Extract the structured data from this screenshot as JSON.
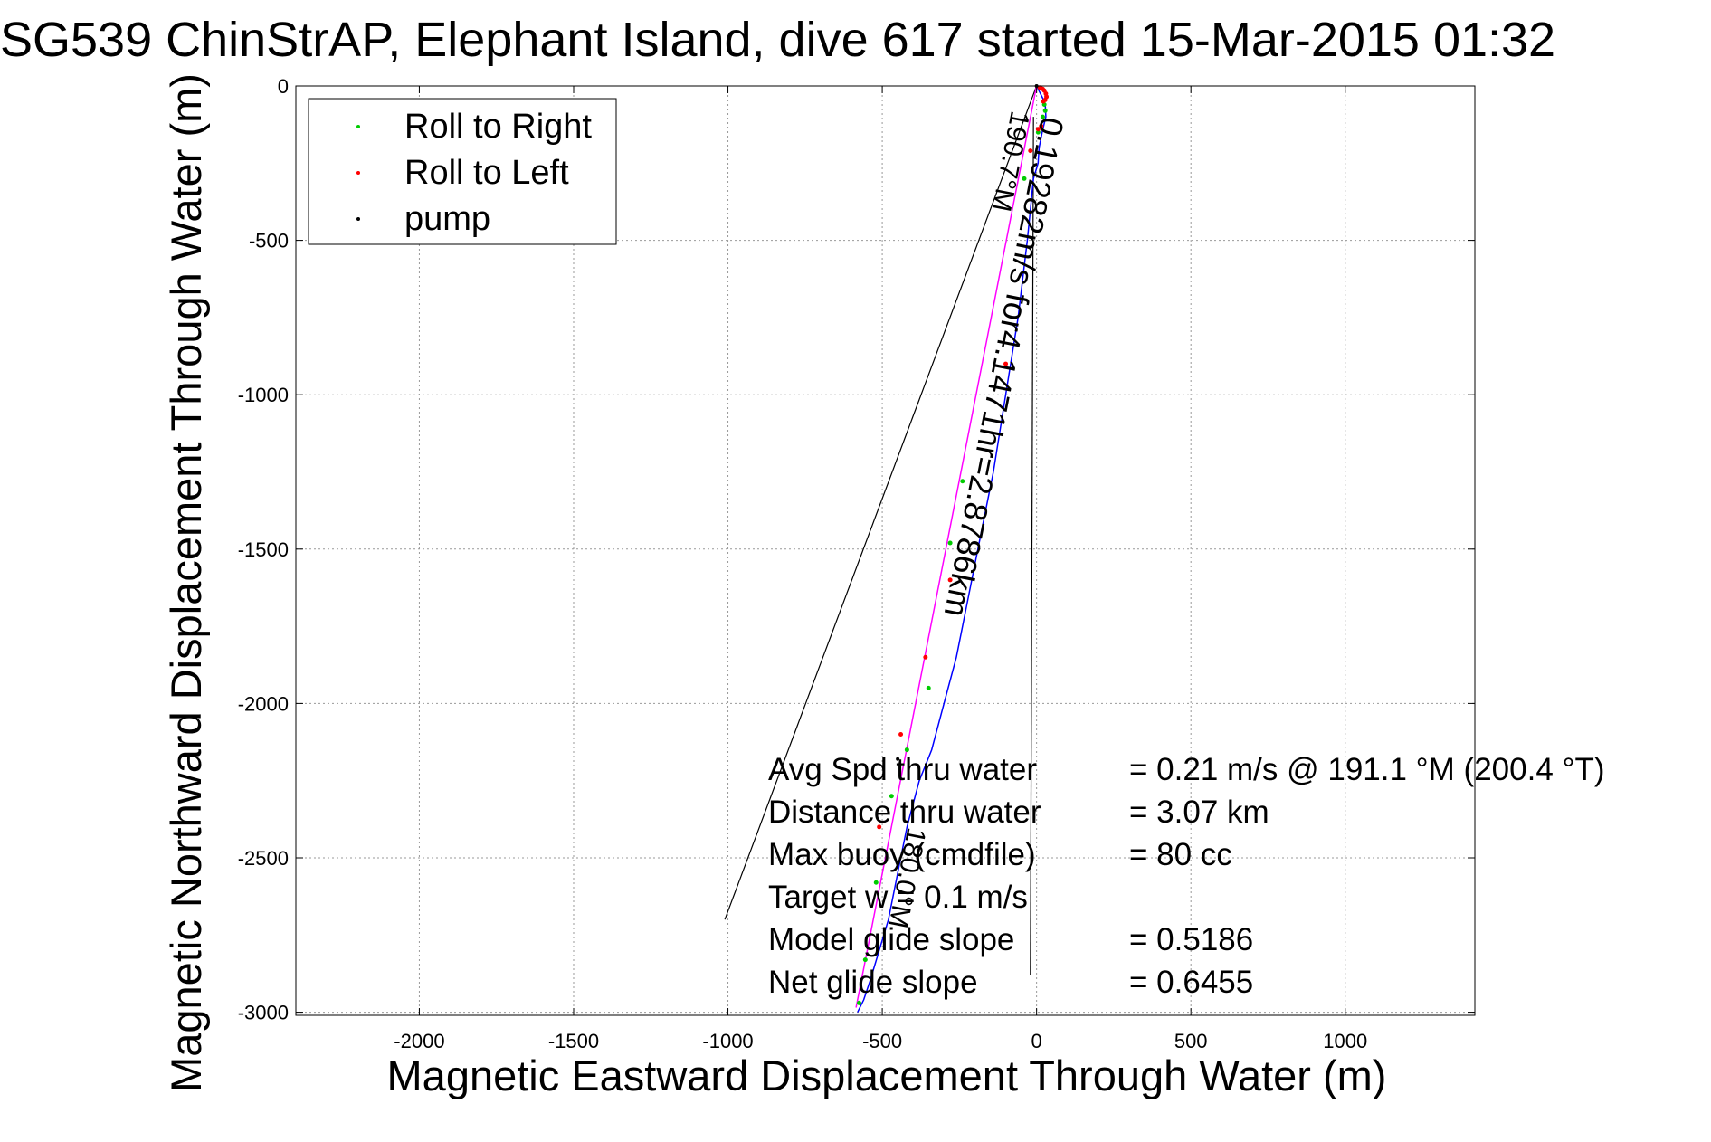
{
  "chart_data": {
    "type": "scatter",
    "title": "SG539 ChinStrAP, Elephant Island, dive 617 started 15-Mar-2015 01:32",
    "xlabel": "Magnetic Eastward Displacement Through Water (m)",
    "ylabel": "Magnetic Northward Displacement Through Water (m)",
    "xlim": [
      -2400,
      1420
    ],
    "ylim": [
      -3010,
      0
    ],
    "xticks": [
      -2000,
      -1500,
      -1000,
      -500,
      0,
      500,
      1000
    ],
    "yticks": [
      0,
      -500,
      -1000,
      -1500,
      -2000,
      -2500,
      -3000
    ],
    "grid": true,
    "legend_position": "top-left",
    "legend": [
      {
        "label": "Roll to Right",
        "color": "#00cc00"
      },
      {
        "label": "Roll to Left",
        "color": "#ff0000"
      },
      {
        "label": "pump",
        "color": "#000000"
      }
    ],
    "track_color": "#0000ff",
    "fit_color": "#ff00ff",
    "track": {
      "x": [
        0,
        10,
        20,
        28,
        30,
        18,
        8,
        5,
        -10,
        -30,
        -60,
        -100,
        -140,
        -180,
        -220,
        -260,
        -300,
        -340,
        -380,
        -420,
        -450,
        -480,
        -510,
        -540,
        -560,
        -580
      ],
      "y": [
        0,
        -20,
        -40,
        -60,
        -100,
        -150,
        -200,
        -250,
        -300,
        -500,
        -750,
        -1000,
        -1250,
        -1450,
        -1650,
        -1850,
        -2000,
        -2150,
        -2250,
        -2400,
        -2550,
        -2700,
        -2800,
        -2900,
        -2960,
        -3000
      ]
    },
    "fit_line": {
      "x": [
        0,
        -585
      ],
      "y": [
        0,
        -2985
      ]
    },
    "current_vector": {
      "x": [
        0,
        -1010
      ],
      "y": [
        0,
        -2700
      ]
    },
    "drift_line": {
      "x": [
        -10,
        -20
      ],
      "y": [
        -100,
        -2880
      ]
    },
    "roll_right_points": {
      "x": [
        25,
        28,
        20,
        5,
        -40,
        -240,
        -280,
        -350,
        -420,
        -470,
        -520,
        -555,
        -575
      ],
      "y": [
        -60,
        -80,
        -100,
        -150,
        -300,
        -1280,
        -1480,
        -1950,
        -2150,
        -2300,
        -2580,
        -2830,
        -2970
      ]
    },
    "roll_left_points": {
      "x": [
        10,
        15,
        20,
        25,
        30,
        32,
        28,
        22,
        15,
        5,
        -20,
        -100,
        -280,
        -360,
        -440,
        -510
      ],
      "y": [
        -5,
        -8,
        -10,
        -15,
        -25,
        -35,
        -45,
        -50,
        -130,
        -140,
        -210,
        -900,
        -1600,
        -1850,
        -2100,
        -2400
      ]
    },
    "pump_points": {
      "x": [
        0,
        -450
      ],
      "y": [
        0,
        -2180
      ]
    },
    "annotations": {
      "fit_label": "0.19282m/s for4.1471hr=2.8786km",
      "fit_heading": "190.7°M",
      "current_label": "180.0°M"
    },
    "stats": [
      {
        "name": "Avg Spd thru water",
        "value": "=  0.21 m/s @ 191.1 °M (200.4 °T)"
      },
      {
        "name": "Distance thru water",
        "value": "=  3.07 km"
      },
      {
        "name": "Max buoy (cmdfile)",
        "value": "= 80 cc"
      },
      {
        "name": "Target w    = 0.1  m/s",
        "value": ""
      },
      {
        "name": "Model glide slope",
        "value": "= 0.5186"
      },
      {
        "name": "Net glide slope",
        "value": "= 0.6455"
      }
    ]
  }
}
